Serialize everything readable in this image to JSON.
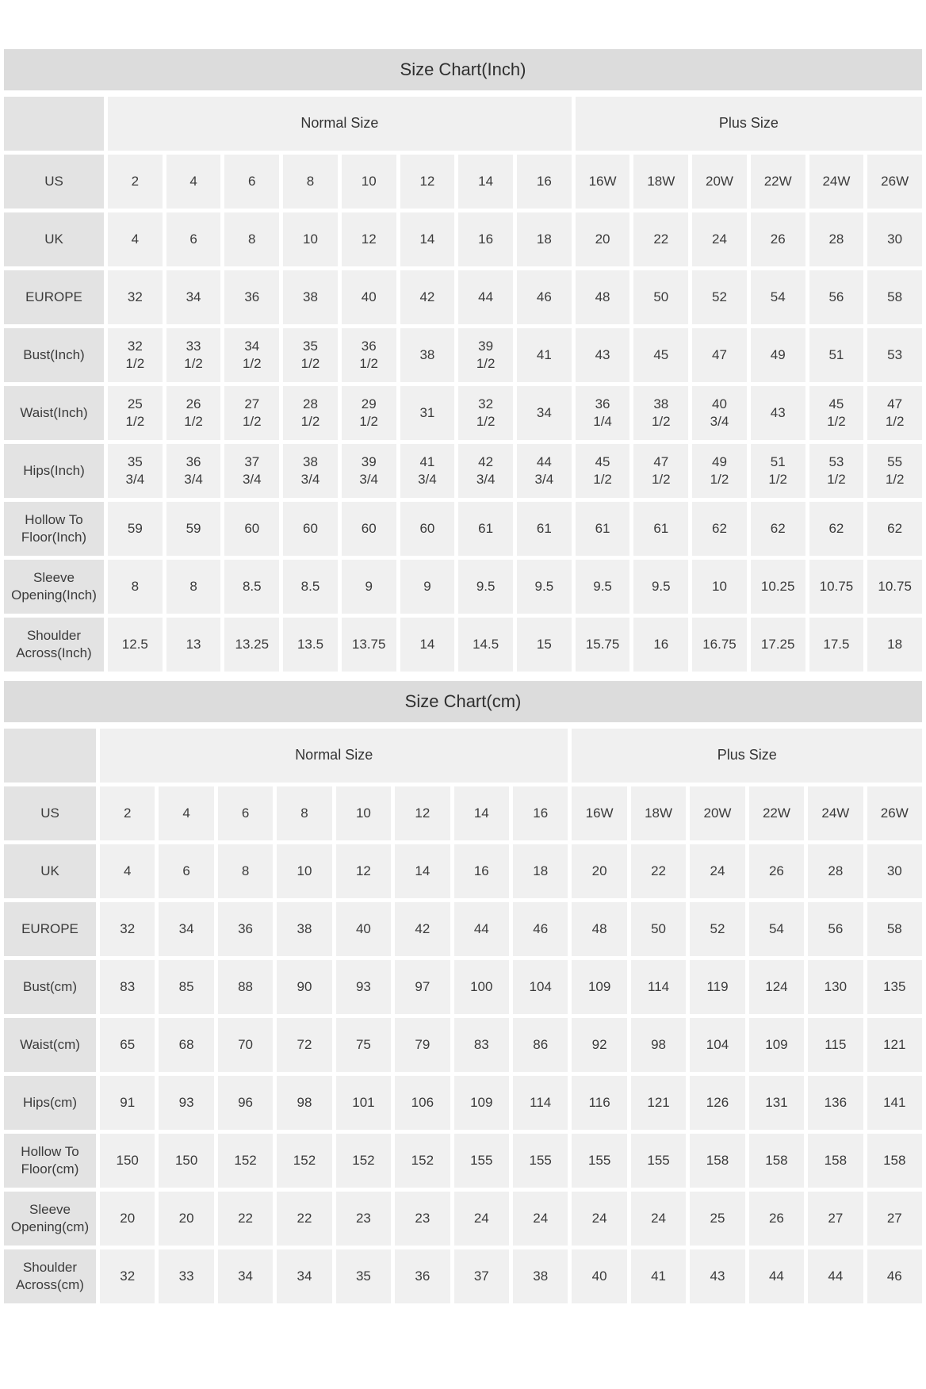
{
  "colors": {
    "title_bar_bg": "#dcdcdc",
    "row_header_bg": "#e3e3e3",
    "cell_bg": "#f0f0f0",
    "page_bg": "#ffffff",
    "text": "#3b3b3b"
  },
  "tables": [
    {
      "title": "Size Chart(Inch)",
      "column_groups": [
        {
          "label": "Normal Size",
          "span": 8
        },
        {
          "label": "Plus Size",
          "span": 6
        }
      ],
      "rows": [
        {
          "label": "US",
          "values": [
            "2",
            "4",
            "6",
            "8",
            "10",
            "12",
            "14",
            "16",
            "16W",
            "18W",
            "20W",
            "22W",
            "24W",
            "26W"
          ]
        },
        {
          "label": "UK",
          "values": [
            "4",
            "6",
            "8",
            "10",
            "12",
            "14",
            "16",
            "18",
            "20",
            "22",
            "24",
            "26",
            "28",
            "30"
          ]
        },
        {
          "label": "EUROPE",
          "values": [
            "32",
            "34",
            "36",
            "38",
            "40",
            "42",
            "44",
            "46",
            "48",
            "50",
            "52",
            "54",
            "56",
            "58"
          ]
        },
        {
          "label": "Bust(Inch)",
          "values": [
            "32\n1/2",
            "33\n1/2",
            "34\n1/2",
            "35\n1/2",
            "36\n1/2",
            "38",
            "39\n1/2",
            "41",
            "43",
            "45",
            "47",
            "49",
            "51",
            "53"
          ]
        },
        {
          "label": "Waist(Inch)",
          "values": [
            "25\n1/2",
            "26\n1/2",
            "27\n1/2",
            "28\n1/2",
            "29\n1/2",
            "31",
            "32\n1/2",
            "34",
            "36\n1/4",
            "38\n1/2",
            "40\n3/4",
            "43",
            "45\n1/2",
            "47\n1/2"
          ]
        },
        {
          "label": "Hips(Inch)",
          "values": [
            "35\n3/4",
            "36\n3/4",
            "37\n3/4",
            "38\n3/4",
            "39\n3/4",
            "41\n3/4",
            "42\n3/4",
            "44\n3/4",
            "45\n1/2",
            "47\n1/2",
            "49\n1/2",
            "51\n1/2",
            "53\n1/2",
            "55\n1/2"
          ]
        },
        {
          "label": "Hollow To Floor(Inch)",
          "values": [
            "59",
            "59",
            "60",
            "60",
            "60",
            "60",
            "61",
            "61",
            "61",
            "61",
            "62",
            "62",
            "62",
            "62"
          ]
        },
        {
          "label": "Sleeve Opening(Inch)",
          "values": [
            "8",
            "8",
            "8.5",
            "8.5",
            "9",
            "9",
            "9.5",
            "9.5",
            "9.5",
            "9.5",
            "10",
            "10.25",
            "10.75",
            "10.75"
          ]
        },
        {
          "label": "Shoulder Across(Inch)",
          "values": [
            "12.5",
            "13",
            "13.25",
            "13.5",
            "13.75",
            "14",
            "14.5",
            "15",
            "15.75",
            "16",
            "16.75",
            "17.25",
            "17.5",
            "18"
          ]
        }
      ]
    },
    {
      "title": "Size Chart(cm)",
      "column_groups": [
        {
          "label": "Normal Size",
          "span": 8
        },
        {
          "label": "Plus Size",
          "span": 6
        }
      ],
      "rows": [
        {
          "label": "US",
          "values": [
            "2",
            "4",
            "6",
            "8",
            "10",
            "12",
            "14",
            "16",
            "16W",
            "18W",
            "20W",
            "22W",
            "24W",
            "26W"
          ]
        },
        {
          "label": "UK",
          "values": [
            "4",
            "6",
            "8",
            "10",
            "12",
            "14",
            "16",
            "18",
            "20",
            "22",
            "24",
            "26",
            "28",
            "30"
          ]
        },
        {
          "label": "EUROPE",
          "values": [
            "32",
            "34",
            "36",
            "38",
            "40",
            "42",
            "44",
            "46",
            "48",
            "50",
            "52",
            "54",
            "56",
            "58"
          ]
        },
        {
          "label": "Bust(cm)",
          "values": [
            "83",
            "85",
            "88",
            "90",
            "93",
            "97",
            "100",
            "104",
            "109",
            "114",
            "119",
            "124",
            "130",
            "135"
          ]
        },
        {
          "label": "Waist(cm)",
          "values": [
            "65",
            "68",
            "70",
            "72",
            "75",
            "79",
            "83",
            "86",
            "92",
            "98",
            "104",
            "109",
            "115",
            "121"
          ]
        },
        {
          "label": "Hips(cm)",
          "values": [
            "91",
            "93",
            "96",
            "98",
            "101",
            "106",
            "109",
            "114",
            "116",
            "121",
            "126",
            "131",
            "136",
            "141"
          ]
        },
        {
          "label": "Hollow To Floor(cm)",
          "values": [
            "150",
            "150",
            "152",
            "152",
            "152",
            "152",
            "155",
            "155",
            "155",
            "155",
            "158",
            "158",
            "158",
            "158"
          ]
        },
        {
          "label": "Sleeve Opening(cm)",
          "values": [
            "20",
            "20",
            "22",
            "22",
            "23",
            "23",
            "24",
            "24",
            "24",
            "24",
            "25",
            "26",
            "27",
            "27"
          ]
        },
        {
          "label": "Shoulder Across(cm)",
          "values": [
            "32",
            "33",
            "34",
            "34",
            "35",
            "36",
            "37",
            "38",
            "40",
            "41",
            "43",
            "44",
            "44",
            "46"
          ]
        }
      ]
    }
  ]
}
